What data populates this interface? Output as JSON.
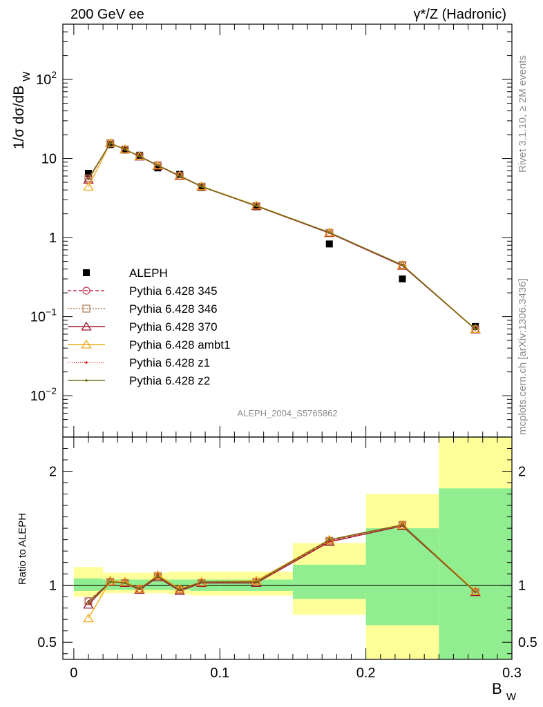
{
  "header": {
    "left": "200 GeV ee",
    "right": "γ*/Z (Hadronic)"
  },
  "side_labels": {
    "rivet": "Rivet 3.1.10, ≥ 2M events",
    "mcplots": "mcplots.cern.ch [arXiv:1306.3436]"
  },
  "analysis_label": "ALEPH_2004_S5765862",
  "colors": {
    "data": "#000000",
    "p345": "#c0304a",
    "p346": "#b07850",
    "p370": "#a01830",
    "ambt1": "#f0a818",
    "z1": "#e02020",
    "z2": "#707018",
    "band_inner": "#90ee90",
    "band_outer": "#ffff99"
  },
  "chart_data": [
    {
      "type": "line",
      "panel": "main",
      "ylabel": "1/σ  dσ/dB_W",
      "yscale": "log",
      "ylim": [
        0.003,
        500
      ],
      "xlim": [
        -0.0075,
        0.3
      ],
      "ytick_labels": [
        "10^-2",
        "10^-1",
        "1",
        "10",
        "10^2"
      ],
      "x": [
        0.01,
        0.025,
        0.035,
        0.045,
        0.0575,
        0.0725,
        0.0875,
        0.125,
        0.175,
        0.225,
        0.275
      ],
      "series": [
        {
          "name": "ALEPH",
          "style": "data",
          "values": [
            6.5,
            15.0,
            12.8,
            11.0,
            7.6,
            6.3,
            4.3,
            2.45,
            0.83,
            0.3,
            0.075
          ]
        },
        {
          "name": "Pythia 6.428 345",
          "style": "p345",
          "values": [
            5.6,
            15.6,
            13.0,
            10.6,
            8.2,
            6.0,
            4.4,
            2.5,
            1.15,
            0.45,
            0.069
          ]
        },
        {
          "name": "Pythia 6.428 346",
          "style": "p346",
          "values": [
            5.6,
            15.6,
            13.0,
            10.7,
            8.2,
            6.0,
            4.4,
            2.5,
            1.15,
            0.45,
            0.069
          ]
        },
        {
          "name": "Pythia 6.428 370",
          "style": "p370",
          "values": [
            5.4,
            15.6,
            13.0,
            10.6,
            8.1,
            6.0,
            4.4,
            2.5,
            1.14,
            0.44,
            0.069
          ]
        },
        {
          "name": "Pythia 6.428 ambt1",
          "style": "ambt1",
          "values": [
            4.4,
            15.7,
            13.1,
            10.7,
            8.2,
            6.1,
            4.45,
            2.55,
            1.16,
            0.45,
            0.07
          ]
        },
        {
          "name": "Pythia 6.428 z1",
          "style": "z1",
          "values": [
            5.5,
            15.6,
            13.0,
            10.7,
            8.2,
            6.05,
            4.42,
            2.52,
            1.15,
            0.45,
            0.069
          ]
        },
        {
          "name": "Pythia 6.428 z2",
          "style": "z2",
          "values": [
            5.5,
            15.6,
            13.0,
            10.7,
            8.2,
            6.05,
            4.42,
            2.52,
            1.16,
            0.45,
            0.069
          ]
        }
      ]
    },
    {
      "type": "line",
      "panel": "ratio",
      "ylabel": "Ratio to ALEPH",
      "xlabel": "B_W",
      "ylim": [
        0.35,
        2.3
      ],
      "xlim": [
        -0.0075,
        0.3
      ],
      "ytick_labels": [
        "0.5",
        "1",
        "2"
      ],
      "xtick_labels": [
        "0",
        "0.1",
        "0.2",
        "0.3"
      ],
      "bins": [
        [
          0,
          0.02
        ],
        [
          0.02,
          0.03
        ],
        [
          0.03,
          0.04
        ],
        [
          0.04,
          0.05
        ],
        [
          0.05,
          0.065
        ],
        [
          0.065,
          0.08
        ],
        [
          0.08,
          0.1
        ],
        [
          0.1,
          0.15
        ],
        [
          0.15,
          0.2
        ],
        [
          0.2,
          0.25
        ],
        [
          0.25,
          0.3
        ]
      ],
      "band_inner": [
        [
          0.95,
          1.06
        ],
        [
          0.96,
          1.05
        ],
        [
          0.96,
          1.05
        ],
        [
          0.96,
          1.05
        ],
        [
          0.96,
          1.05
        ],
        [
          0.96,
          1.05
        ],
        [
          0.95,
          1.05
        ],
        [
          0.95,
          1.05
        ],
        [
          0.88,
          1.18
        ],
        [
          0.65,
          1.5
        ],
        [
          0.35,
          1.85
        ]
      ],
      "band_outer": [
        [
          0.9,
          1.16
        ],
        [
          0.93,
          1.11
        ],
        [
          0.93,
          1.11
        ],
        [
          0.93,
          1.11
        ],
        [
          0.93,
          1.11
        ],
        [
          0.92,
          1.12
        ],
        [
          0.91,
          1.12
        ],
        [
          0.91,
          1.12
        ],
        [
          0.74,
          1.37
        ],
        [
          0.35,
          1.8
        ],
        [
          0.35,
          2.3
        ]
      ],
      "x": [
        0.01,
        0.025,
        0.035,
        0.045,
        0.0575,
        0.0725,
        0.0875,
        0.125,
        0.175,
        0.225,
        0.275
      ],
      "series": [
        {
          "name": "Pythia 6.428 345",
          "style": "p345",
          "values": [
            0.86,
            1.03,
            1.02,
            0.97,
            1.08,
            0.96,
            1.02,
            1.03,
            1.39,
            1.53,
            0.94
          ]
        },
        {
          "name": "Pythia 6.428 346",
          "style": "p346",
          "values": [
            0.86,
            1.03,
            1.02,
            0.97,
            1.08,
            0.96,
            1.02,
            1.03,
            1.39,
            1.53,
            0.94
          ]
        },
        {
          "name": "Pythia 6.428 370",
          "style": "p370",
          "values": [
            0.83,
            1.03,
            1.02,
            0.96,
            1.07,
            0.95,
            1.02,
            1.02,
            1.38,
            1.52,
            0.94
          ]
        },
        {
          "name": "Pythia 6.428 ambt1",
          "style": "ambt1",
          "values": [
            0.71,
            1.04,
            1.03,
            0.97,
            1.09,
            0.97,
            1.03,
            1.04,
            1.4,
            1.53,
            0.95
          ]
        },
        {
          "name": "Pythia 6.428 z1",
          "style": "z1",
          "values": [
            0.85,
            1.03,
            1.02,
            0.97,
            1.08,
            0.96,
            1.03,
            1.03,
            1.39,
            1.53,
            0.94
          ]
        },
        {
          "name": "Pythia 6.428 z2",
          "style": "z2",
          "values": [
            0.85,
            1.03,
            1.02,
            0.97,
            1.08,
            0.96,
            1.03,
            1.03,
            1.4,
            1.53,
            0.94
          ]
        }
      ]
    }
  ]
}
